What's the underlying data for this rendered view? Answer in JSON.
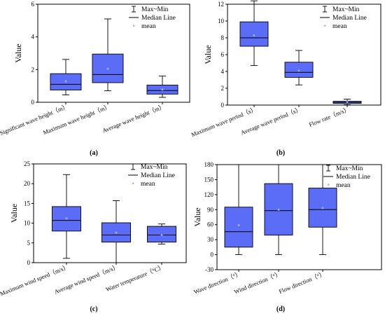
{
  "legend": {
    "items": [
      "Max~Min",
      "Median Line",
      "mean"
    ]
  },
  "colors": {
    "box_fill": "#5b6cf7",
    "box_stroke": "#000000",
    "mean_marker": "#a9b2ff",
    "axis": "#000000"
  },
  "chart_data": [
    {
      "type": "boxplot",
      "panel_label": "(a)",
      "ylabel": "Value",
      "ylim": [
        0,
        6
      ],
      "yticks": [
        0,
        2,
        4,
        6
      ],
      "grid": false,
      "legend_position": "top-right",
      "categories": [
        "Significant wave height（m）",
        "Maximum wave height（m）",
        "Average wave height（m）"
      ],
      "boxes": [
        {
          "min": 0.45,
          "q1": 0.75,
          "median": 1.1,
          "q3": 1.75,
          "max": 2.62,
          "mean": 1.28
        },
        {
          "min": 0.7,
          "q1": 1.2,
          "median": 1.7,
          "q3": 2.95,
          "max": 5.1,
          "mean": 2.05
        },
        {
          "min": 0.3,
          "q1": 0.5,
          "median": 0.72,
          "q3": 1.05,
          "max": 1.6,
          "mean": 0.78
        }
      ]
    },
    {
      "type": "boxplot",
      "panel_label": "(b)",
      "ylabel": "Value",
      "ylim": [
        0,
        12
      ],
      "yticks": [
        0,
        2,
        4,
        6,
        8,
        10,
        12
      ],
      "grid": false,
      "legend_position": "top-right",
      "categories": [
        "Maximum wave period（s）",
        "Average wave period（s）",
        "Flow rate（m/s）"
      ],
      "boxes": [
        {
          "min": 4.7,
          "q1": 7.0,
          "median": 8.0,
          "q3": 9.9,
          "max": 12.4,
          "mean": 8.3
        },
        {
          "min": 2.4,
          "q1": 3.3,
          "median": 3.9,
          "q3": 5.1,
          "max": 6.5,
          "mean": 4.1
        },
        {
          "min": 0.05,
          "q1": 0.2,
          "median": 0.32,
          "q3": 0.45,
          "max": 0.7,
          "mean": 0.35
        }
      ]
    },
    {
      "type": "boxplot",
      "panel_label": "(c)",
      "ylabel": "Value",
      "ylim": [
        0,
        25
      ],
      "yticks": [
        0,
        5,
        10,
        15,
        20,
        25
      ],
      "grid": false,
      "legend_position": "top-right",
      "categories": [
        "Maximum wind speed（m/s）",
        "Average wind speed（m/s）",
        "Water temperature（°C）"
      ],
      "boxes": [
        {
          "min": 1.1,
          "q1": 8.0,
          "median": 10.7,
          "q3": 14.2,
          "max": 22.3,
          "mean": 11.2
        },
        {
          "min": 0.0,
          "q1": 5.2,
          "median": 7.0,
          "q3": 10.1,
          "max": 15.7,
          "mean": 7.6
        },
        {
          "min": 4.7,
          "q1": 5.2,
          "median": 7.0,
          "q3": 9.2,
          "max": 9.8,
          "mean": 7.0
        }
      ]
    },
    {
      "type": "boxplot",
      "panel_label": "(d)",
      "ylabel": "Value",
      "ylim": [
        -30,
        180
      ],
      "yticks": [
        -30,
        0,
        30,
        60,
        90,
        120,
        150,
        180
      ],
      "grid": false,
      "legend_position": "top-right",
      "categories": [
        "Wave direction（°）",
        "Wind direction（°）",
        "Flow direction（°）"
      ],
      "boxes": [
        {
          "min": 0,
          "q1": 15,
          "median": 46,
          "q3": 95,
          "max": 180,
          "mean": 59
        },
        {
          "min": 0,
          "q1": 39,
          "median": 88,
          "q3": 142,
          "max": 180,
          "mean": 90
        },
        {
          "min": 0,
          "q1": 55,
          "median": 90,
          "q3": 133,
          "max": 180,
          "mean": 93
        }
      ]
    }
  ]
}
